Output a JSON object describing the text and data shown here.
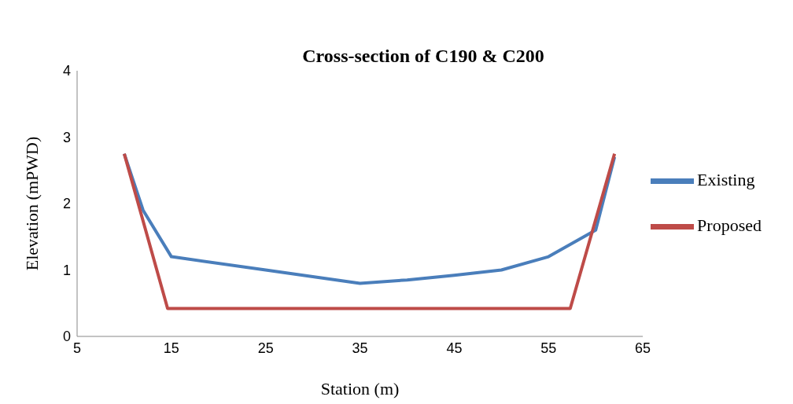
{
  "chart_data": {
    "type": "line",
    "title": "Cross-section of C190 & C200",
    "xlabel": "Station (m)",
    "ylabel": "Elevation (mPWD)",
    "series": [
      {
        "name": "Existing",
        "color": "#4a7ebb",
        "x": [
          10,
          12,
          15,
          25,
          35,
          40,
          45,
          50,
          55,
          60,
          62
        ],
        "values": [
          2.75,
          1.9,
          1.2,
          1.0,
          0.8,
          0.85,
          0.92,
          1.0,
          1.2,
          1.6,
          2.7
        ]
      },
      {
        "name": "Proposed",
        "color": "#be4b48",
        "x": [
          10,
          14.6,
          57.3,
          62
        ],
        "values": [
          2.75,
          0.42,
          0.42,
          2.75
        ]
      }
    ],
    "xlim": [
      5,
      65
    ],
    "xticks": [
      5,
      15,
      25,
      35,
      45,
      55,
      65
    ],
    "ylim": [
      0,
      4
    ],
    "yticks": [
      0,
      1,
      2,
      3,
      4
    ],
    "grid": false,
    "legend": "right",
    "marker": "none",
    "line_style": "solid"
  }
}
